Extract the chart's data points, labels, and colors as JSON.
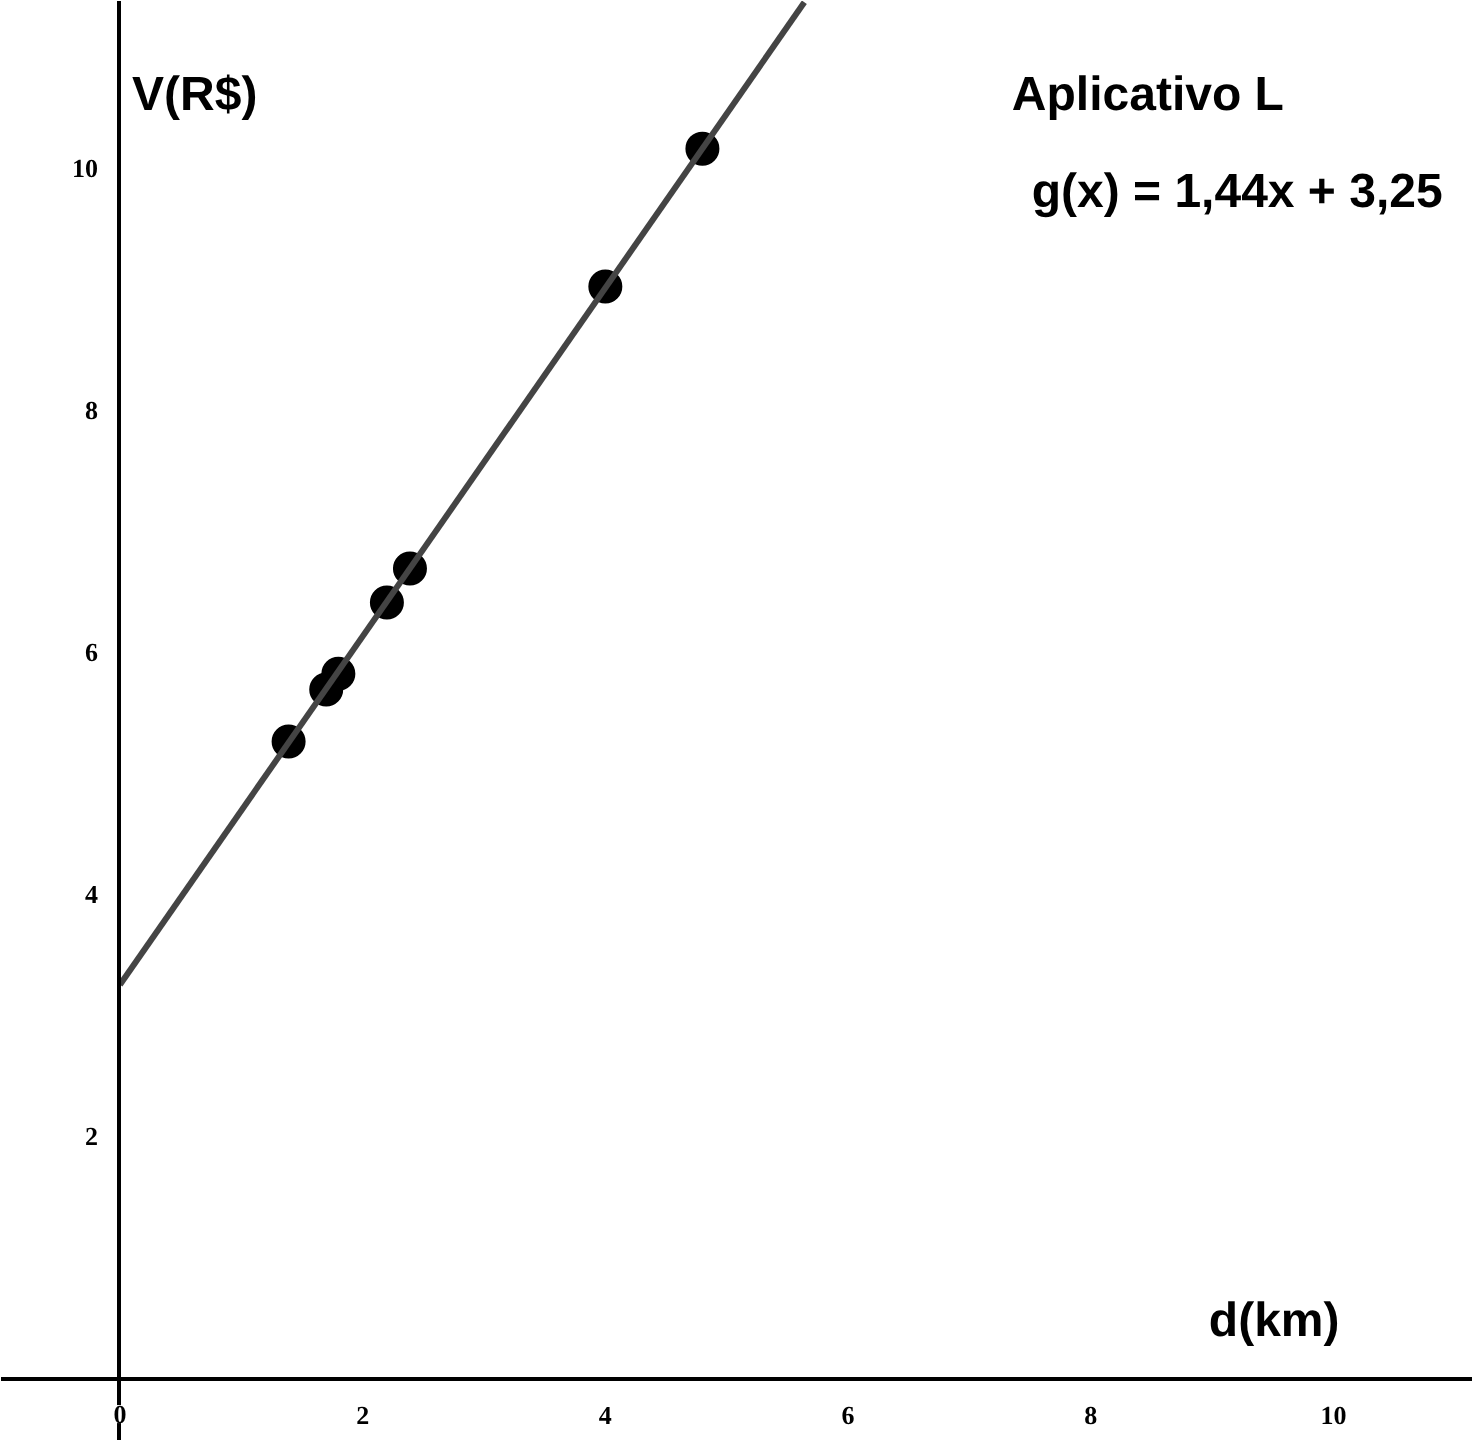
{
  "chart_data": {
    "type": "scatter",
    "title": "Aplicativo L",
    "xlabel": "d(km)",
    "ylabel": "V(R$)",
    "annotations": [
      "g(x) = 1,44x + 3,25"
    ],
    "series": [
      {
        "marker": "circle",
        "color": "#000000",
        "x": [
          1.39,
          1.7,
          1.8,
          2.2,
          2.39,
          4.0,
          4.8
        ],
        "values": [
          5.26,
          5.69,
          5.82,
          6.41,
          6.69,
          9.02,
          10.16
        ]
      },
      {
        "type": "line",
        "marker": "none",
        "color": "#444444",
        "x": [
          0,
          5.64
        ],
        "values": [
          3.25,
          11.37
        ]
      }
    ],
    "xlim": [
      -0.98,
      11.15
    ],
    "ylim": [
      -0.52,
      11.38
    ],
    "xticks": [
      0,
      2,
      4,
      6,
      8,
      10
    ],
    "yticks": [
      2,
      4,
      6,
      8,
      10
    ],
    "grid": false
  }
}
